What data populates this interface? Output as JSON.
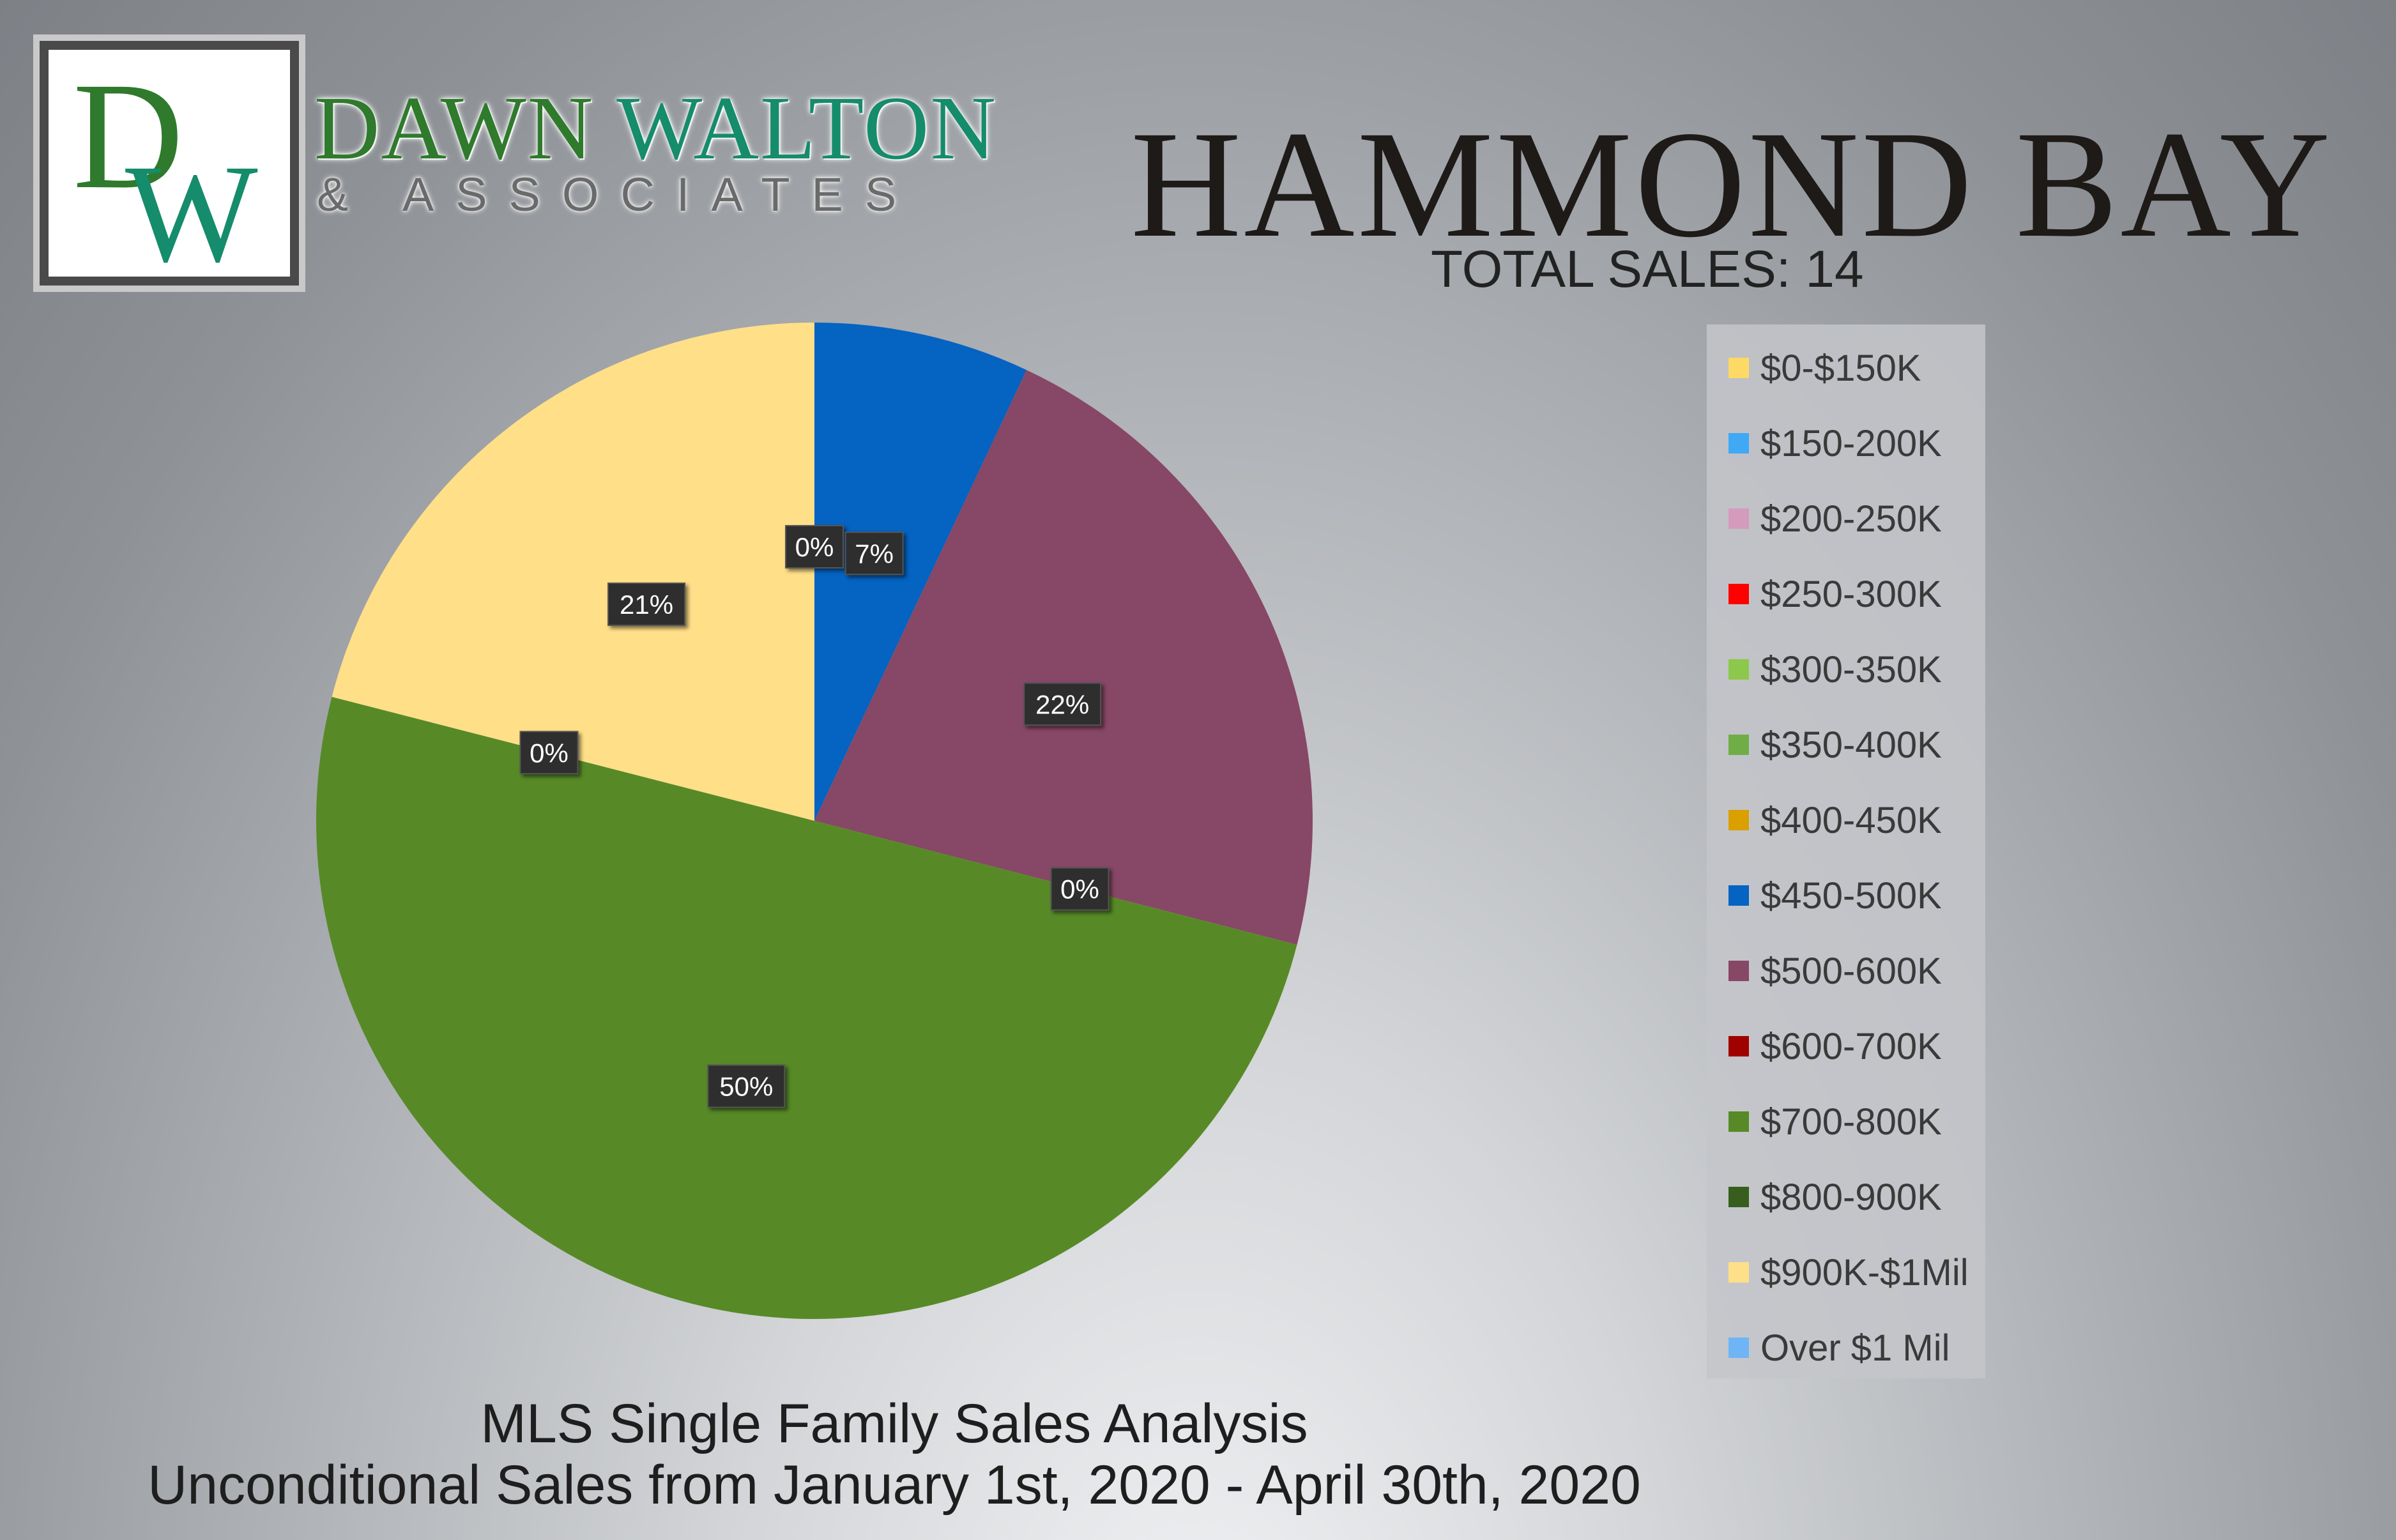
{
  "logo": {
    "monogram": "DW",
    "name_line1_a": "DAWN",
    "name_line1_b": "WALTON",
    "name_line2": "& ASSOCIATES",
    "colors": {
      "green": "#2f7a2c",
      "teal": "#158c6b"
    }
  },
  "chart_data": {
    "type": "pie",
    "title": "HAMMOND BAY",
    "subtitle": "TOTAL SALES: 14",
    "footer_line1": "MLS Single Family Sales Analysis",
    "footer_line2": "Unconditional Sales from January 1st, 2020 - April 30th, 2020",
    "legend_position": "right",
    "slices": [
      {
        "label": "$0-$150K",
        "value": 0,
        "color": "#ffd966"
      },
      {
        "label": "$150-200K",
        "value": 0,
        "color": "#3fa9f5"
      },
      {
        "label": "$200-250K",
        "value": 0,
        "color": "#d49bbc"
      },
      {
        "label": "$250-300K",
        "value": 0,
        "color": "#ff0000"
      },
      {
        "label": "$300-350K",
        "value": 0,
        "color": "#8cc84b"
      },
      {
        "label": "$350-400K",
        "value": 0,
        "color": "#70ad47"
      },
      {
        "label": "$400-450K",
        "value": 0,
        "color": "#d9a000"
      },
      {
        "label": "$450-500K",
        "value": 7,
        "color": "#0563c1"
      },
      {
        "label": "$500-600K",
        "value": 22,
        "color": "#874766"
      },
      {
        "label": "$600-700K",
        "value": 0,
        "color": "#a00000"
      },
      {
        "label": "$700-800K",
        "value": 50,
        "color": "#578a27"
      },
      {
        "label": "$800-900K",
        "value": 0,
        "color": "#385e1e"
      },
      {
        "label": "$900K-$1Mil",
        "value": 21,
        "color": "#ffdf88"
      },
      {
        "label": "Over $1 Mil",
        "value": 0,
        "color": "#6fb4f5"
      }
    ],
    "data_labels": [
      {
        "text": "0%",
        "slice": "$0-$150K"
      },
      {
        "text": "7%",
        "slice": "$450-500K"
      },
      {
        "text": "22%",
        "slice": "$500-600K"
      },
      {
        "text": "0%",
        "slice": "$600-700K"
      },
      {
        "text": "50%",
        "slice": "$700-800K"
      },
      {
        "text": "0%",
        "slice": "$800-900K"
      },
      {
        "text": "21%",
        "slice": "$900K-$1Mil"
      }
    ]
  }
}
